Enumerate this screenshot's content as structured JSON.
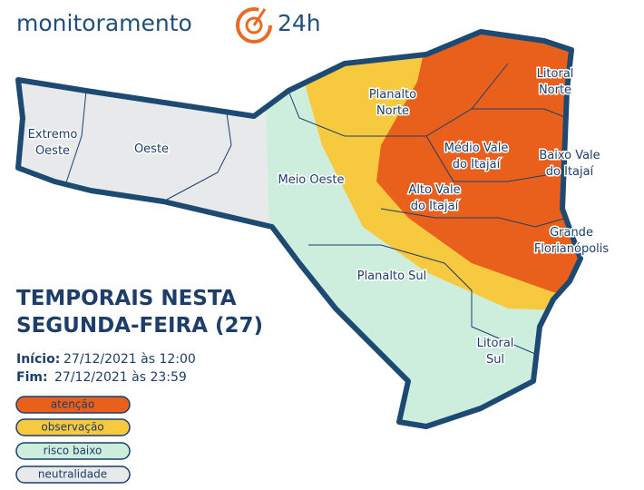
{
  "header": {
    "brand": "monitoramento",
    "brand_suffix": "24h"
  },
  "title_lines": [
    "TEMPORAIS NESTA",
    "SEGUNDA-FEIRA (27)"
  ],
  "period": {
    "start_label": "Início:",
    "start": "27/12/2021 às 12:00",
    "end_label": "Fim:",
    "end": "27/12/2021 às 23:59"
  },
  "legend": [
    {
      "label": "atenção",
      "color": "#e8601c"
    },
    {
      "label": "observação",
      "color": "#f7c93e"
    },
    {
      "label": "risco baixo",
      "color": "#cdeedd"
    },
    {
      "label": "neutralidade",
      "color": "#e8e9ea"
    }
  ],
  "regions": [
    {
      "name_lines": [
        "Extremo",
        "Oeste"
      ]
    },
    {
      "name_lines": [
        "Oeste"
      ]
    },
    {
      "name_lines": [
        "Meio Oeste"
      ]
    },
    {
      "name_lines": [
        "Planalto",
        "Norte"
      ]
    },
    {
      "name_lines": [
        "Litoral",
        "Norte"
      ]
    },
    {
      "name_lines": [
        "Médio Vale",
        "do Itajaí"
      ]
    },
    {
      "name_lines": [
        "Baixo Vale",
        "do Itajaí"
      ]
    },
    {
      "name_lines": [
        "Alto Vale",
        "do Itajaí"
      ]
    },
    {
      "name_lines": [
        "Grande",
        "Florianópolis"
      ]
    },
    {
      "name_lines": [
        "Planalto Sul"
      ]
    },
    {
      "name_lines": [
        "Litoral",
        "Sul"
      ]
    }
  ]
}
